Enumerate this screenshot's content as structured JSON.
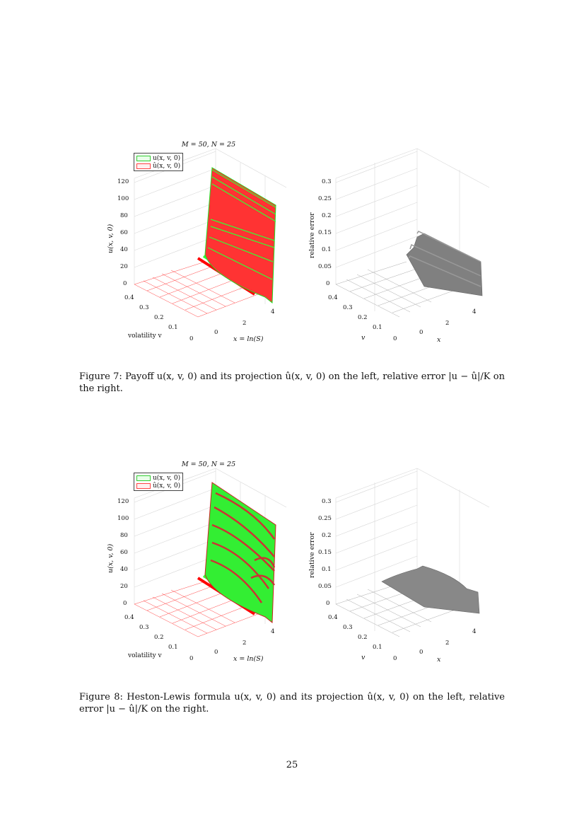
{
  "figures": [
    {
      "title": "M = 50, N = 25",
      "legend": [
        "u(x, v, 0)",
        "û(x, v, 0)"
      ],
      "left_plot": {
        "y_label": "u(x, v, 0)",
        "y_ticks": [
          "0",
          "20",
          "40",
          "60",
          "80",
          "100",
          "120"
        ],
        "v_ticks": [
          "0",
          "0.1",
          "0.2",
          "0.3",
          "0.4"
        ],
        "x_ticks": [
          "0",
          "2",
          "4"
        ],
        "v_label": "volatility v",
        "x_label": "x = ln(S)"
      },
      "right_plot": {
        "y_label": "relative error",
        "y_ticks": [
          "0",
          "0.05",
          "0.1",
          "0.15",
          "0.2",
          "0.25",
          "0.3"
        ],
        "v_ticks": [
          "0",
          "0.1",
          "0.2",
          "0.3",
          "0.4"
        ],
        "x_ticks": [
          "0",
          "2",
          "4"
        ],
        "v_label": "v",
        "x_label": "x"
      },
      "caption": "Figure 7: Payoff u(x, v, 0) and its projection û(x, v, 0) on the left, relative error |u − û|/K on the right."
    },
    {
      "title": "M = 50, N = 25",
      "legend": [
        "u(x, v, 0)",
        "û(x, v, 0)"
      ],
      "left_plot": {
        "y_label": "u(x, v, 0)",
        "y_ticks": [
          "0",
          "20",
          "40",
          "60",
          "80",
          "100",
          "120"
        ],
        "v_ticks": [
          "0",
          "0.1",
          "0.2",
          "0.3",
          "0.4"
        ],
        "x_ticks": [
          "0",
          "2",
          "4"
        ],
        "v_label": "volatility v",
        "x_label": "x = ln(S)"
      },
      "right_plot": {
        "y_label": "relative error",
        "y_ticks": [
          "0",
          "0.05",
          "0.1",
          "0.15",
          "0.2",
          "0.25",
          "0.3"
        ],
        "v_ticks": [
          "0",
          "0.1",
          "0.2",
          "0.3",
          "0.4"
        ],
        "x_ticks": [
          "0",
          "2",
          "4"
        ],
        "v_label": "v",
        "x_label": "x"
      },
      "caption": "Figure 8: Heston-Lewis formula u(x, v, 0) and its projection û(x, v, 0) on the left, relative error |u − û|/K on the right."
    }
  ],
  "page_number": "25",
  "colors": {
    "green": "#33ff33",
    "red": "#ff0000",
    "gray": "#808080"
  }
}
